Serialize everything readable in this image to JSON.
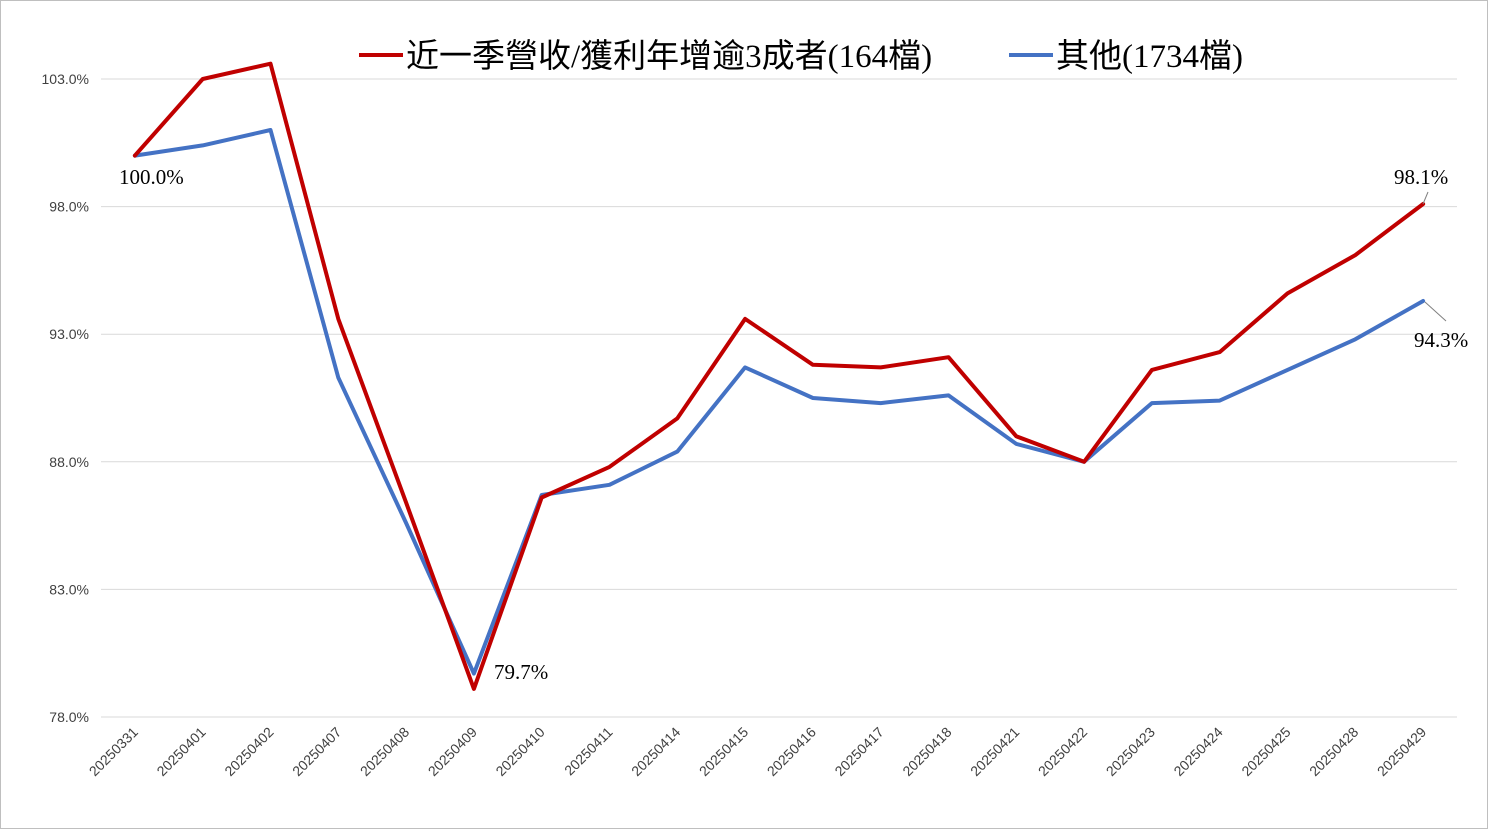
{
  "chart_data": {
    "type": "line",
    "title": "",
    "xlabel": "",
    "ylabel": "",
    "ylim": [
      78.0,
      104.0
    ],
    "y_ticks": [
      78.0,
      83.0,
      88.0,
      93.0,
      98.0,
      103.0
    ],
    "y_tick_labels": [
      "78.0%",
      "83.0%",
      "88.0%",
      "93.0%",
      "98.0%",
      "103.0%"
    ],
    "grid": true,
    "legend_position": "top",
    "categories": [
      "20250331",
      "20250401",
      "20250402",
      "20250407",
      "20250408",
      "20250409",
      "20250410",
      "20250411",
      "20250414",
      "20250415",
      "20250416",
      "20250417",
      "20250418",
      "20250421",
      "20250422",
      "20250423",
      "20250424",
      "20250425",
      "20250428",
      "20250429"
    ],
    "series": [
      {
        "name": "近一季營收/獲利年增逾3成者(164檔)",
        "color": "#c00000",
        "values": [
          100.0,
          103.0,
          103.6,
          93.6,
          86.4,
          79.1,
          86.6,
          87.8,
          89.7,
          93.6,
          91.8,
          91.7,
          92.1,
          89.0,
          88.0,
          91.6,
          92.3,
          94.6,
          96.1,
          98.1
        ]
      },
      {
        "name": "其他(1734檔)",
        "color": "#4472c4",
        "values": [
          100.0,
          100.4,
          101.0,
          91.3,
          85.6,
          79.7,
          86.7,
          87.1,
          88.4,
          91.7,
          90.5,
          90.3,
          90.6,
          88.7,
          88.0,
          90.3,
          90.4,
          91.6,
          92.8,
          94.3
        ]
      }
    ],
    "annotations": [
      {
        "id": "start",
        "text": "100.0%"
      },
      {
        "id": "min",
        "text": "79.7%"
      },
      {
        "id": "end-red",
        "text": "98.1%"
      },
      {
        "id": "end-blue",
        "text": "94.3%"
      }
    ]
  }
}
